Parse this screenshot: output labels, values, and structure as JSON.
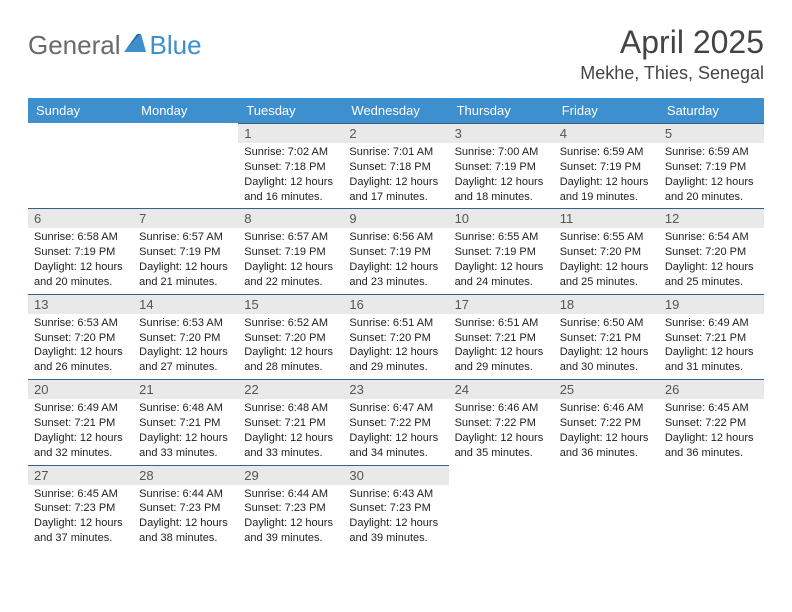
{
  "logo": {
    "text1": "General",
    "text2": "Blue"
  },
  "title": "April 2025",
  "subtitle": "Mekhe, Thies, Senegal",
  "colors": {
    "header_bg": "#3e8fce",
    "header_text": "#ffffff",
    "daynum_bg": "#e9e9e9",
    "rule": "#35608a",
    "logo_gray": "#6a6a6a",
    "logo_blue": "#3e8fce"
  },
  "day_headers": [
    "Sunday",
    "Monday",
    "Tuesday",
    "Wednesday",
    "Thursday",
    "Friday",
    "Saturday"
  ],
  "weeks": [
    [
      null,
      null,
      {
        "n": "1",
        "sr": "7:02 AM",
        "ss": "7:18 PM",
        "dl": "12 hours and 16 minutes."
      },
      {
        "n": "2",
        "sr": "7:01 AM",
        "ss": "7:18 PM",
        "dl": "12 hours and 17 minutes."
      },
      {
        "n": "3",
        "sr": "7:00 AM",
        "ss": "7:19 PM",
        "dl": "12 hours and 18 minutes."
      },
      {
        "n": "4",
        "sr": "6:59 AM",
        "ss": "7:19 PM",
        "dl": "12 hours and 19 minutes."
      },
      {
        "n": "5",
        "sr": "6:59 AM",
        "ss": "7:19 PM",
        "dl": "12 hours and 20 minutes."
      }
    ],
    [
      {
        "n": "6",
        "sr": "6:58 AM",
        "ss": "7:19 PM",
        "dl": "12 hours and 20 minutes."
      },
      {
        "n": "7",
        "sr": "6:57 AM",
        "ss": "7:19 PM",
        "dl": "12 hours and 21 minutes."
      },
      {
        "n": "8",
        "sr": "6:57 AM",
        "ss": "7:19 PM",
        "dl": "12 hours and 22 minutes."
      },
      {
        "n": "9",
        "sr": "6:56 AM",
        "ss": "7:19 PM",
        "dl": "12 hours and 23 minutes."
      },
      {
        "n": "10",
        "sr": "6:55 AM",
        "ss": "7:19 PM",
        "dl": "12 hours and 24 minutes."
      },
      {
        "n": "11",
        "sr": "6:55 AM",
        "ss": "7:20 PM",
        "dl": "12 hours and 25 minutes."
      },
      {
        "n": "12",
        "sr": "6:54 AM",
        "ss": "7:20 PM",
        "dl": "12 hours and 25 minutes."
      }
    ],
    [
      {
        "n": "13",
        "sr": "6:53 AM",
        "ss": "7:20 PM",
        "dl": "12 hours and 26 minutes."
      },
      {
        "n": "14",
        "sr": "6:53 AM",
        "ss": "7:20 PM",
        "dl": "12 hours and 27 minutes."
      },
      {
        "n": "15",
        "sr": "6:52 AM",
        "ss": "7:20 PM",
        "dl": "12 hours and 28 minutes."
      },
      {
        "n": "16",
        "sr": "6:51 AM",
        "ss": "7:20 PM",
        "dl": "12 hours and 29 minutes."
      },
      {
        "n": "17",
        "sr": "6:51 AM",
        "ss": "7:21 PM",
        "dl": "12 hours and 29 minutes."
      },
      {
        "n": "18",
        "sr": "6:50 AM",
        "ss": "7:21 PM",
        "dl": "12 hours and 30 minutes."
      },
      {
        "n": "19",
        "sr": "6:49 AM",
        "ss": "7:21 PM",
        "dl": "12 hours and 31 minutes."
      }
    ],
    [
      {
        "n": "20",
        "sr": "6:49 AM",
        "ss": "7:21 PM",
        "dl": "12 hours and 32 minutes."
      },
      {
        "n": "21",
        "sr": "6:48 AM",
        "ss": "7:21 PM",
        "dl": "12 hours and 33 minutes."
      },
      {
        "n": "22",
        "sr": "6:48 AM",
        "ss": "7:21 PM",
        "dl": "12 hours and 33 minutes."
      },
      {
        "n": "23",
        "sr": "6:47 AM",
        "ss": "7:22 PM",
        "dl": "12 hours and 34 minutes."
      },
      {
        "n": "24",
        "sr": "6:46 AM",
        "ss": "7:22 PM",
        "dl": "12 hours and 35 minutes."
      },
      {
        "n": "25",
        "sr": "6:46 AM",
        "ss": "7:22 PM",
        "dl": "12 hours and 36 minutes."
      },
      {
        "n": "26",
        "sr": "6:45 AM",
        "ss": "7:22 PM",
        "dl": "12 hours and 36 minutes."
      }
    ],
    [
      {
        "n": "27",
        "sr": "6:45 AM",
        "ss": "7:23 PM",
        "dl": "12 hours and 37 minutes."
      },
      {
        "n": "28",
        "sr": "6:44 AM",
        "ss": "7:23 PM",
        "dl": "12 hours and 38 minutes."
      },
      {
        "n": "29",
        "sr": "6:44 AM",
        "ss": "7:23 PM",
        "dl": "12 hours and 39 minutes."
      },
      {
        "n": "30",
        "sr": "6:43 AM",
        "ss": "7:23 PM",
        "dl": "12 hours and 39 minutes."
      },
      null,
      null,
      null
    ]
  ],
  "labels": {
    "sunrise": "Sunrise: ",
    "sunset": "Sunset: ",
    "daylight": "Daylight: "
  }
}
